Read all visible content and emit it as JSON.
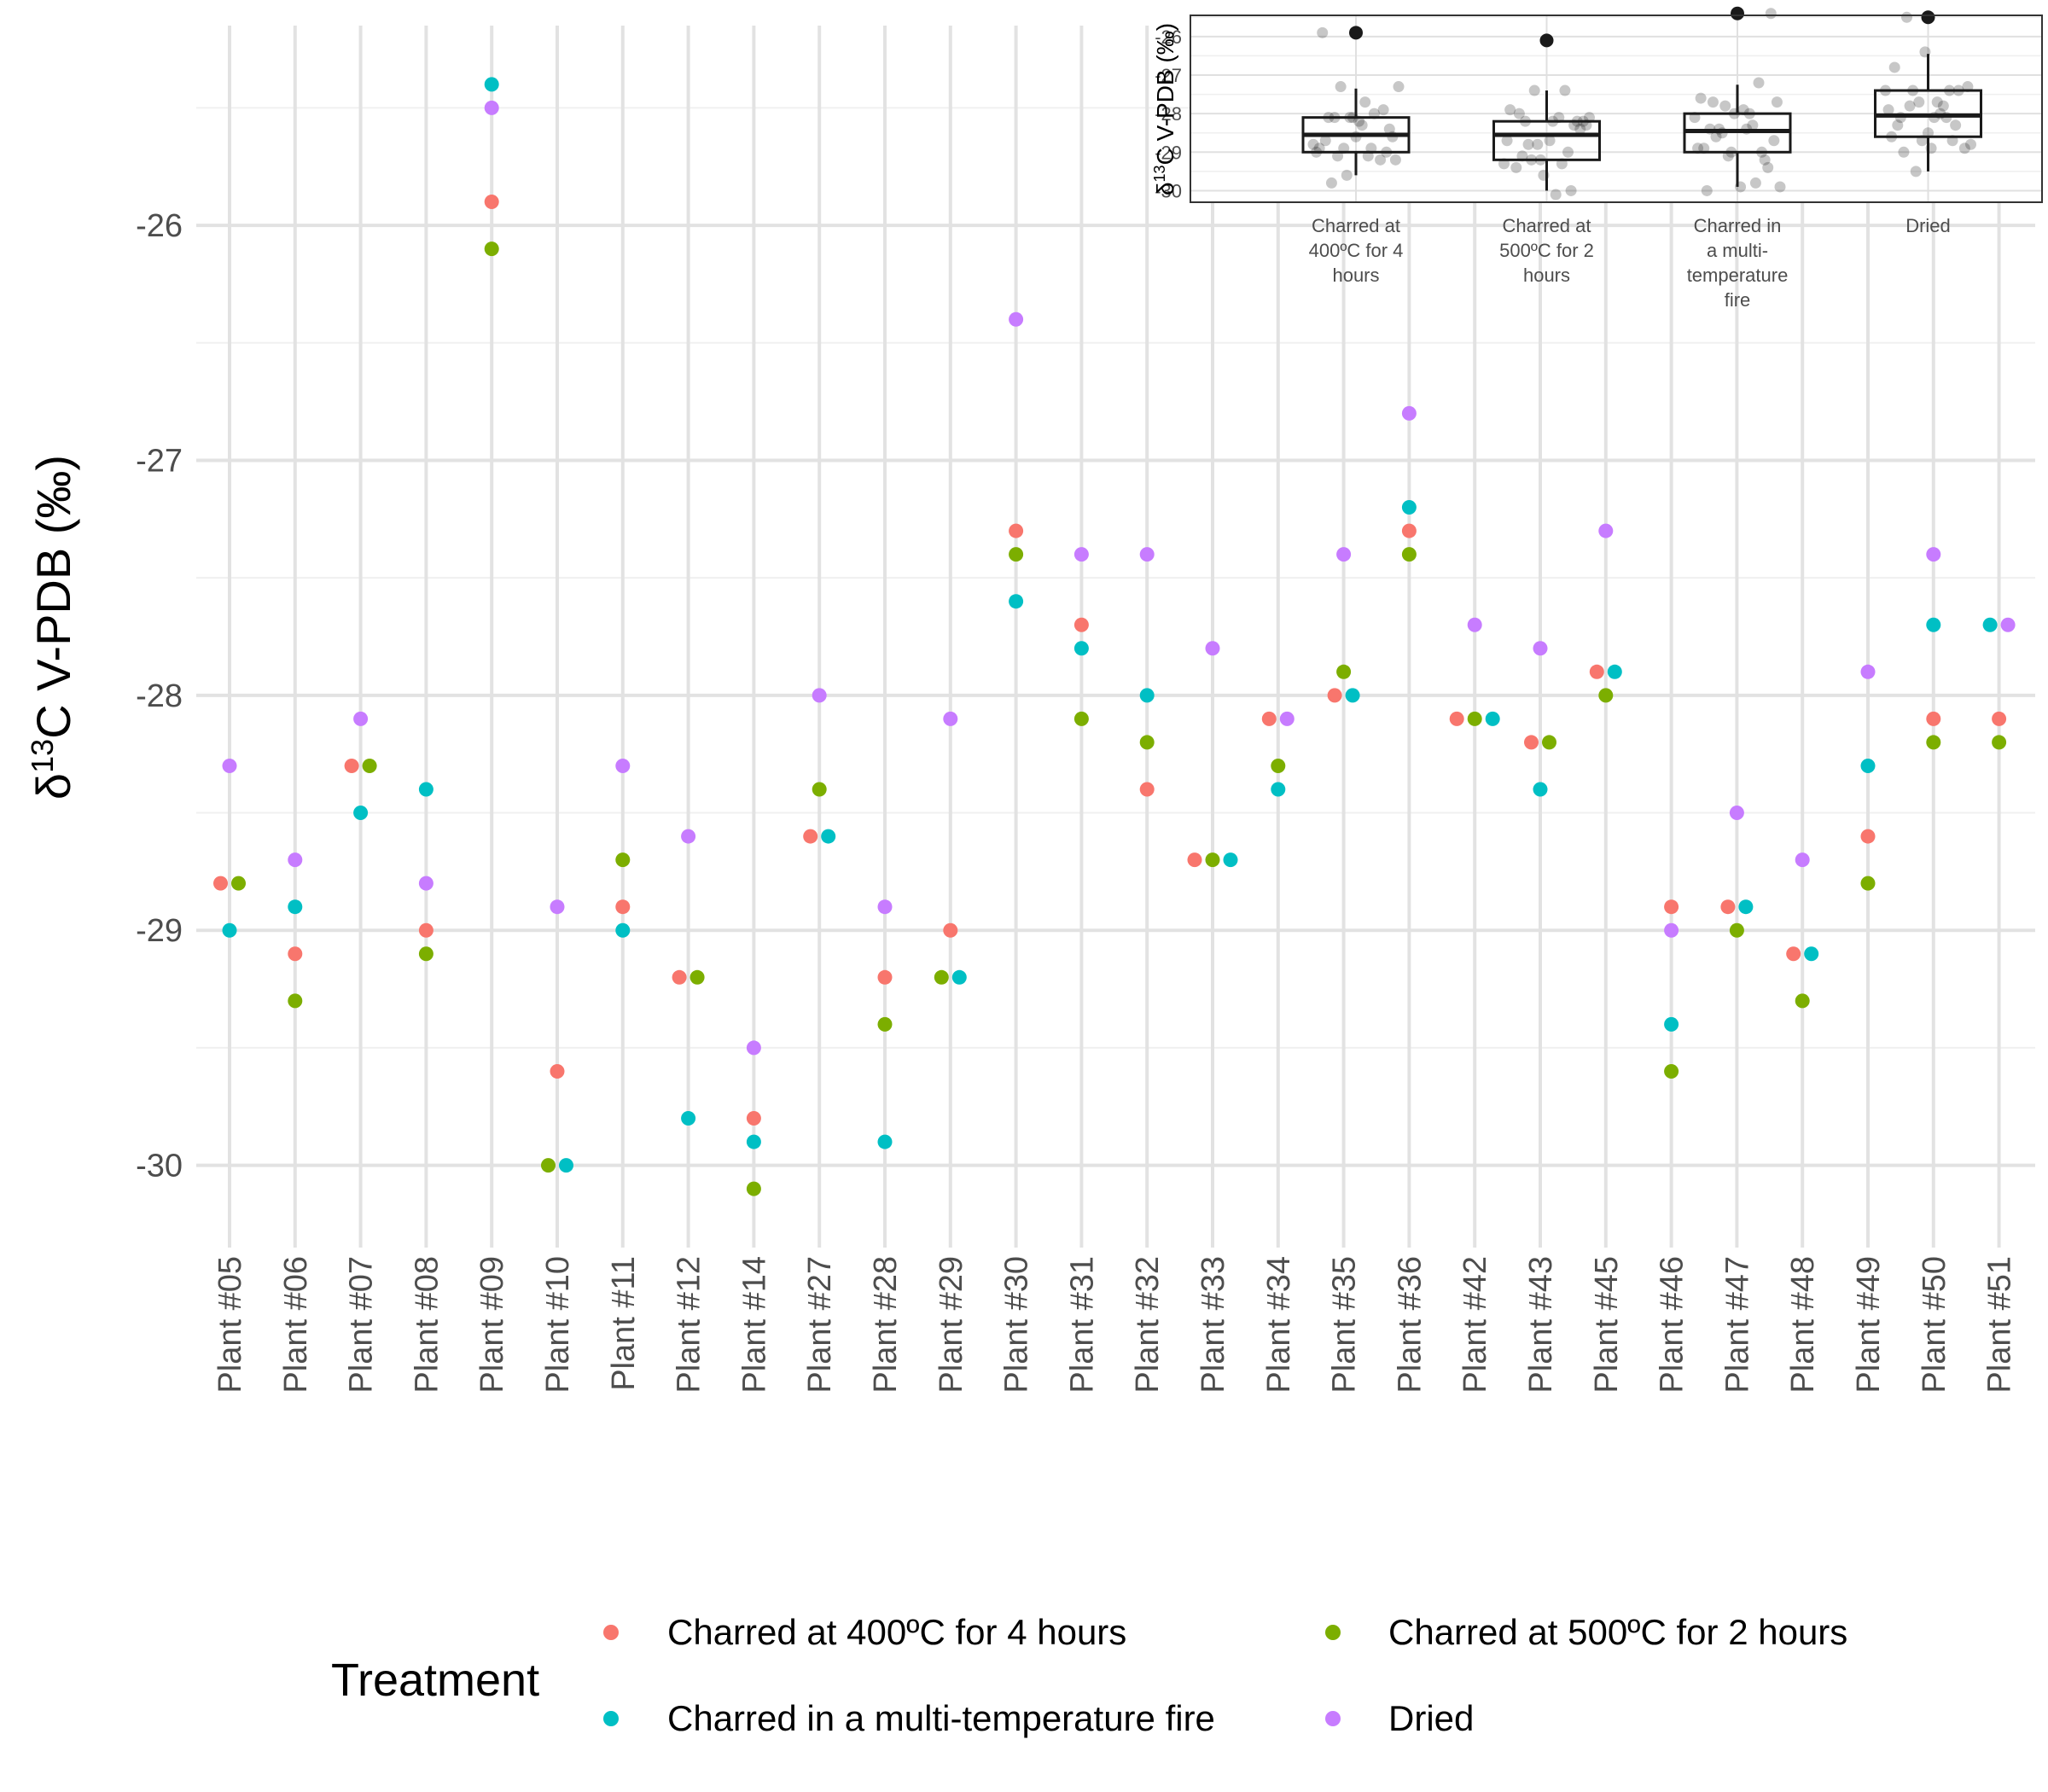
{
  "chart_data": [
    {
      "type": "scatter",
      "ylabel_prefix": "δ",
      "ylabel_sup": "13",
      "ylabel_rest": "C V-PDB (‰)",
      "xlabel": "",
      "ylim": [
        -30.35,
        -25.15
      ],
      "yticks": [
        -30,
        -29,
        -28,
        -27,
        -26
      ],
      "ytick_labels": [
        "-30",
        "-29",
        "-28",
        "-27",
        "-26"
      ],
      "grid": true,
      "legend": {
        "title": "Treatment",
        "position": "bottom"
      },
      "categories": [
        "Plant #05",
        "Plant #06",
        "Plant #07",
        "Plant #08",
        "Plant #09",
        "Plant #10",
        "Plant #11",
        "Plant #12",
        "Plant #14",
        "Plant #27",
        "Plant #28",
        "Plant #29",
        "Plant #30",
        "Plant #31",
        "Plant #32",
        "Plant #33",
        "Plant #34",
        "Plant #35",
        "Plant #36",
        "Plant #42",
        "Plant #43",
        "Plant #45",
        "Plant #46",
        "Plant #47",
        "Plant #48",
        "Plant #49",
        "Plant #50",
        "Plant #51"
      ],
      "series": [
        {
          "name": "Charred at 400ºC for 4 hours",
          "color": "#F8766D",
          "values": [
            -28.8,
            -29.1,
            -28.3,
            -29.0,
            -25.9,
            -29.6,
            -28.9,
            -29.2,
            -29.8,
            -28.6,
            -29.2,
            -29.0,
            -27.3,
            -27.7,
            -28.4,
            -28.7,
            -28.1,
            -28.0,
            -27.3,
            -28.1,
            -28.2,
            -27.9,
            -28.9,
            -28.9,
            -29.1,
            -28.6,
            -28.1,
            -28.1
          ]
        },
        {
          "name": "Charred at 500ºC for 2 hours",
          "color": "#7CAE00",
          "values": [
            -28.8,
            -29.3,
            -28.3,
            -29.1,
            -26.1,
            -30.0,
            -28.7,
            -29.2,
            -30.1,
            -28.4,
            -29.4,
            -29.2,
            -27.4,
            -28.1,
            -28.2,
            -28.7,
            -28.3,
            -27.9,
            -27.4,
            -28.1,
            -28.2,
            -28.0,
            -29.6,
            -29.0,
            -29.3,
            -28.8,
            -28.2,
            -28.2
          ]
        },
        {
          "name": "Charred in a multi-temperature fire",
          "color": "#00BFC4",
          "values": [
            -29.0,
            -28.9,
            -28.5,
            -28.4,
            -25.4,
            -30.0,
            -29.0,
            -29.8,
            -29.9,
            -28.6,
            -29.9,
            -29.2,
            -27.6,
            -27.8,
            -28.0,
            -28.7,
            -28.4,
            -28.0,
            -27.2,
            -28.1,
            -28.4,
            -27.9,
            -29.4,
            -28.9,
            -29.1,
            -28.3,
            -27.7,
            -27.7
          ]
        },
        {
          "name": "Dried",
          "color": "#C77CFF",
          "values": [
            -28.3,
            -28.7,
            -28.1,
            -28.8,
            -25.5,
            -28.9,
            -28.3,
            -28.6,
            -29.5,
            -28.0,
            -28.9,
            -28.1,
            -26.4,
            -27.4,
            -27.4,
            -27.8,
            -28.1,
            -27.4,
            -26.8,
            -27.7,
            -27.8,
            -27.3,
            -29.0,
            -28.5,
            -28.7,
            -27.9,
            -27.4,
            -27.7
          ]
        }
      ]
    },
    {
      "type": "box",
      "ylabel_prefix": "δ",
      "ylabel_sup": "13",
      "ylabel_rest": "C V-PDB (‰)",
      "ylim": [
        -30.3,
        -25.45
      ],
      "yticks": [
        -30,
        -29,
        -28,
        -27,
        -26
      ],
      "ytick_labels": [
        "-30",
        "-29",
        "-28",
        "-27",
        "-26"
      ],
      "categories": [
        [
          "Charred at",
          "400ºC for 4",
          "hours"
        ],
        [
          "Charred at",
          "500ºC for 2",
          "hours"
        ],
        [
          "Charred in",
          "a multi-",
          "temperature",
          "fire"
        ],
        [
          "Dried"
        ]
      ],
      "boxes": [
        {
          "q1": -29.0,
          "median": -28.55,
          "q3": -28.1,
          "whisker_low": -29.6,
          "whisker_high": -27.35,
          "outlier": -25.9
        },
        {
          "q1": -29.2,
          "median": -28.55,
          "q3": -28.2,
          "whisker_low": -30.0,
          "whisker_high": -27.4,
          "outlier": -26.1
        },
        {
          "q1": -29.0,
          "median": -28.45,
          "q3": -28.0,
          "whisker_low": -29.9,
          "whisker_high": -27.25,
          "outlier": -25.4
        },
        {
          "q1": -28.6,
          "median": -28.05,
          "q3": -27.4,
          "whisker_low": -29.5,
          "whisker_high": -26.45,
          "outlier": -25.5
        }
      ]
    }
  ]
}
